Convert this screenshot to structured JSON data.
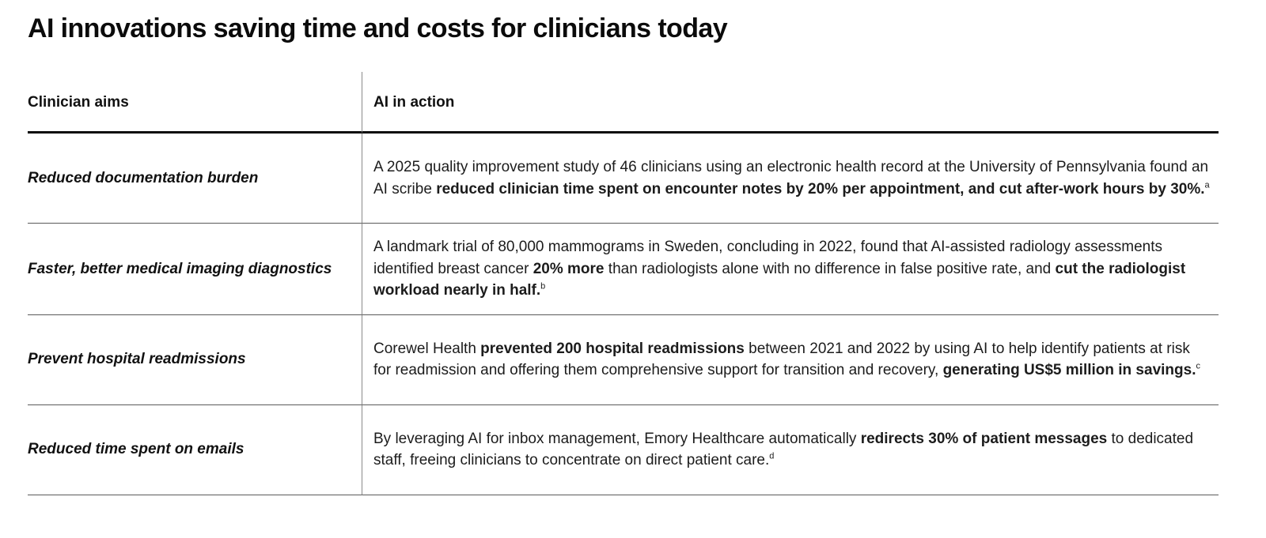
{
  "page": {
    "title": "AI innovations saving time and costs for clinicians today"
  },
  "colors": {
    "text": "#111111",
    "heavy_rule": "#0b0b0b",
    "light_rule": "#5a5a5a",
    "column_divider": "#8a8a8a",
    "background": "#ffffff"
  },
  "table": {
    "columns": [
      {
        "label": "Clinician aims"
      },
      {
        "label": "AI in action"
      }
    ],
    "rows": [
      {
        "aim": "Reduced documentation burden",
        "segments": [
          {
            "text": "A 2025 quality improvement study of 46 clinicians using an electronic health record at the University of Pennsylvania found an AI scribe ",
            "bold": false
          },
          {
            "text": "reduced clinician time spent on encounter notes by 20% per appointment, and cut after-work hours by 30%.",
            "bold": true
          },
          {
            "text": "a",
            "sup": true
          }
        ]
      },
      {
        "aim": "Faster, better medical imaging diagnostics",
        "segments": [
          {
            "text": "A landmark trial of 80,000 mammograms in Sweden, concluding in 2022, found that AI-assisted radiology assessments identified breast cancer ",
            "bold": false
          },
          {
            "text": "20% more",
            "bold": true
          },
          {
            "text": " than radiologists alone with no difference in false positive rate, and ",
            "bold": false
          },
          {
            "text": "cut the radiologist workload nearly in half.",
            "bold": true
          },
          {
            "text": "b",
            "sup": true
          }
        ]
      },
      {
        "aim": "Prevent hospital readmissions",
        "segments": [
          {
            "text": "Corewel Health ",
            "bold": false
          },
          {
            "text": "prevented 200 hospital readmissions",
            "bold": true
          },
          {
            "text": " between 2021 and 2022 by using AI to help identify patients at risk for readmission and offering them comprehensive support for transition and recovery, ",
            "bold": false
          },
          {
            "text": "generating US$5 million in savings.",
            "bold": true
          },
          {
            "text": "c",
            "sup": true
          }
        ]
      },
      {
        "aim": "Reduced time spent on emails",
        "segments": [
          {
            "text": "By leveraging AI for inbox management, Emory Healthcare automatically ",
            "bold": false
          },
          {
            "text": "redirects 30% of patient messages",
            "bold": true
          },
          {
            "text": " to dedicated staff, freeing clinicians to concentrate on direct patient care.",
            "bold": false
          },
          {
            "text": "d",
            "sup": true
          }
        ]
      }
    ]
  }
}
